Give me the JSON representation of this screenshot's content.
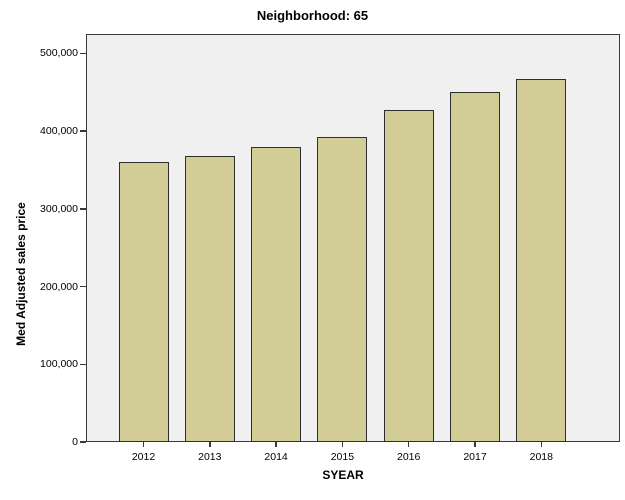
{
  "chart_data": {
    "type": "bar",
    "title": "Neighborhood: 65",
    "xlabel": "SYEAR",
    "ylabel": "Med Adjusted sales price",
    "categories": [
      "2012",
      "2013",
      "2014",
      "2015",
      "2016",
      "2017",
      "2018"
    ],
    "values": [
      360000,
      368000,
      380000,
      393000,
      427000,
      451000,
      467000
    ],
    "ylim": [
      0,
      525000
    ],
    "yticks": [
      0,
      100000,
      200000,
      300000,
      400000,
      500000
    ],
    "ytick_labels": [
      "0",
      "100,000",
      "200,000",
      "300,000",
      "400,000",
      "500,000"
    ],
    "grid": false,
    "legend_position": "none",
    "bar_color": "#D2CD96",
    "bar_border_color": "#2E2E2E",
    "panel_background": "#F0F0F0",
    "panel_border_color": "#3A3A3A"
  }
}
